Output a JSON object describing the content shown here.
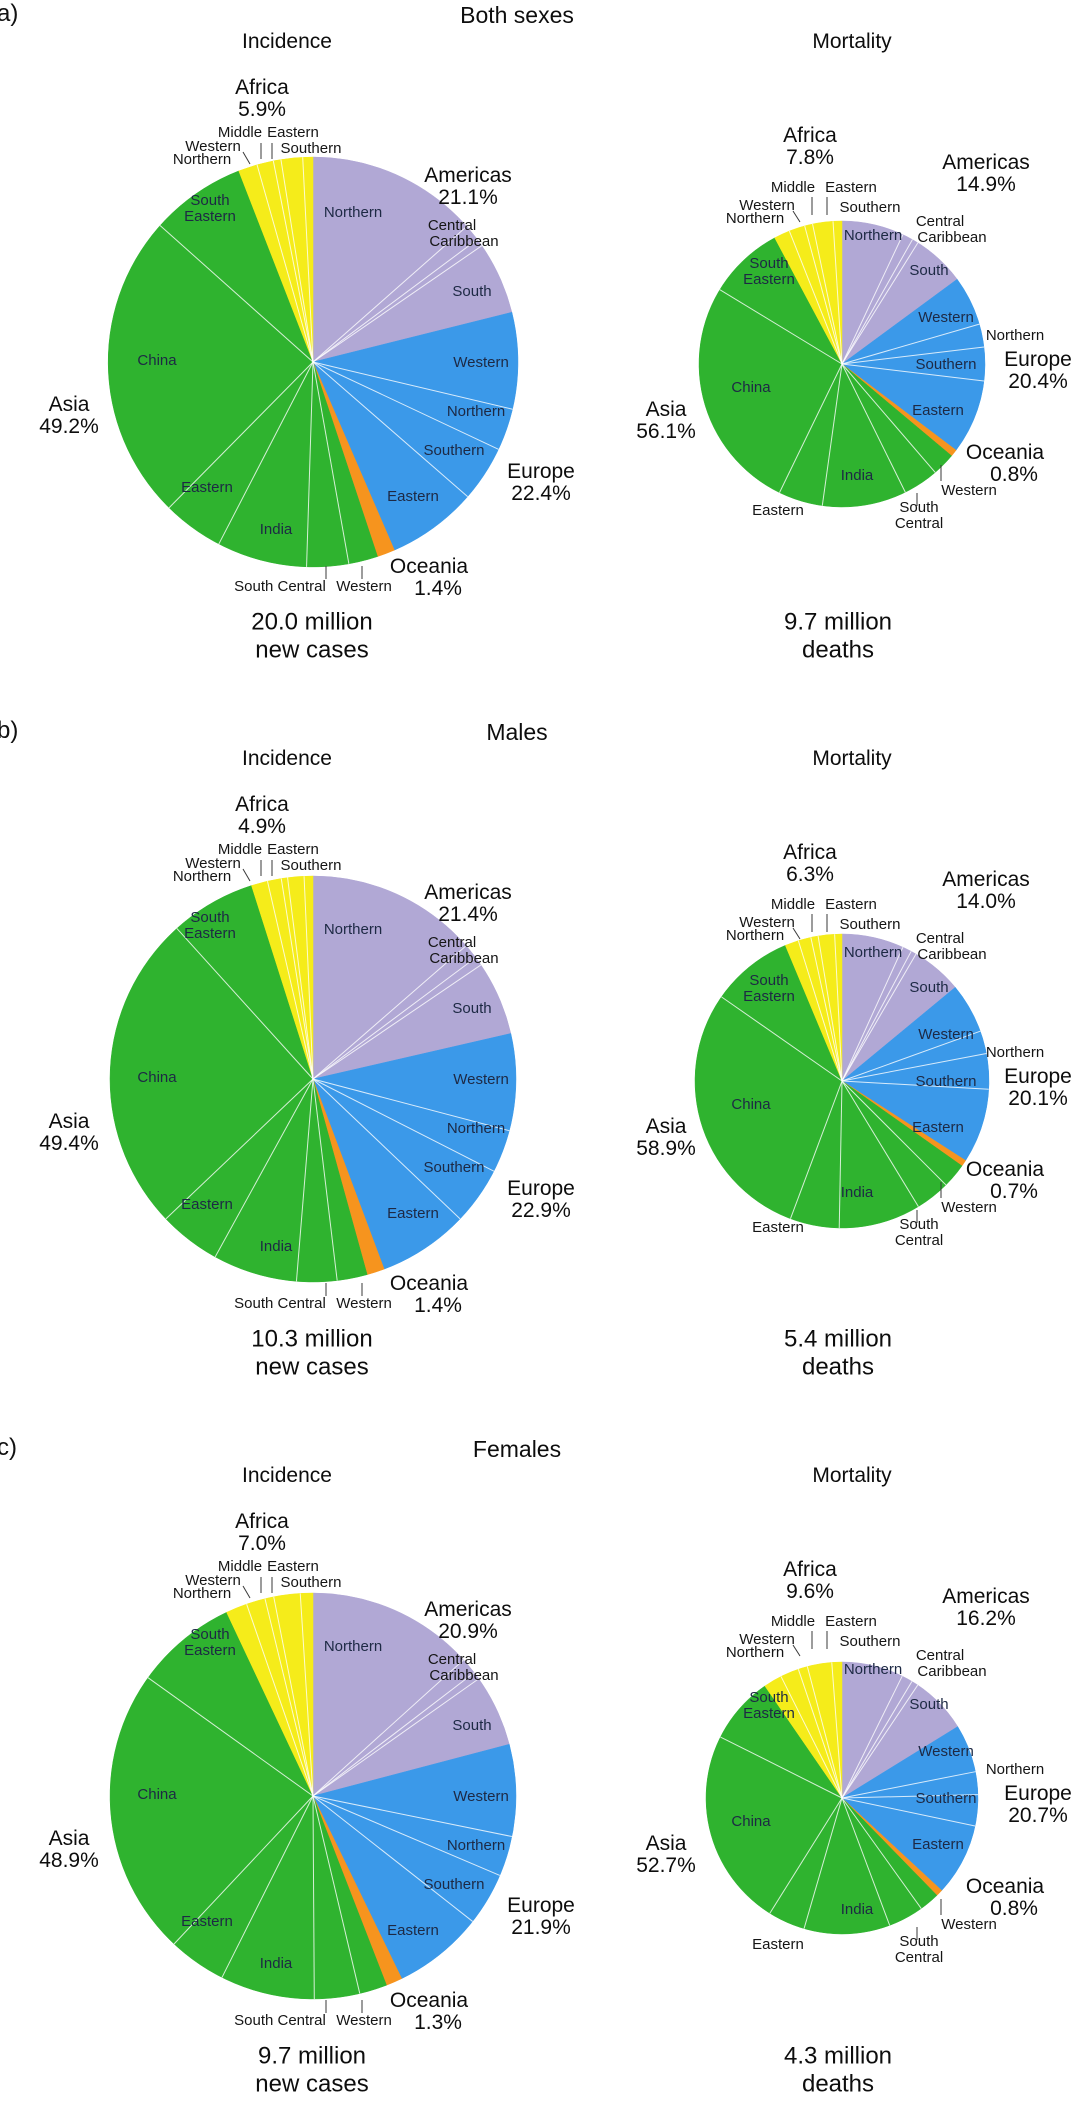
{
  "figure": {
    "colors": {
      "americas": "#b1a8d5",
      "europe": "#3b99e9",
      "oceania": "#f6941e",
      "asia": "#2fb32f",
      "africa": "#f5ec1a",
      "divider": "#ffffff",
      "tick": "#3a3a3a",
      "background": "#ffffff"
    },
    "subregion_labels": {
      "middle": "Middle",
      "eastern": "Eastern",
      "western": "Western",
      "northern": "Northern",
      "southern": "Southern",
      "central": "Central",
      "caribbean": "Caribbean",
      "south": "South",
      "south_central": "South Central",
      "south_eastern": "South Eastern",
      "china": "China",
      "india": "India"
    },
    "panels": [
      {
        "letter": "a)",
        "title": "Both sexes",
        "incidence": {
          "subtitle": "Incidence",
          "caption1": "20.0 million",
          "caption2": "new cases",
          "labels": {
            "africa_name": "Africa",
            "africa_pct": "5.9%",
            "americas_name": "Americas",
            "americas_pct": "21.1%",
            "europe_name": "Europe",
            "europe_pct": "22.4%",
            "oceania_name": "Oceania",
            "oceania_pct": "1.4%",
            "asia_name": "Asia",
            "asia_pct": "49.2%"
          }
        },
        "mortality": {
          "subtitle": "Mortality",
          "caption1": "9.7 million",
          "caption2": "deaths",
          "labels": {
            "africa_name": "Africa",
            "africa_pct": "7.8%",
            "americas_name": "Americas",
            "americas_pct": "14.9%",
            "europe_name": "Europe",
            "europe_pct": "20.4%",
            "oceania_name": "Oceania",
            "oceania_pct": "0.8%",
            "asia_name": "Asia",
            "asia_pct": "56.1%"
          }
        }
      },
      {
        "letter": "b)",
        "title": "Males",
        "incidence": {
          "subtitle": "Incidence",
          "caption1": "10.3 million",
          "caption2": "new cases",
          "labels": {
            "africa_name": "Africa",
            "africa_pct": "4.9%",
            "americas_name": "Americas",
            "americas_pct": "21.4%",
            "europe_name": "Europe",
            "europe_pct": "22.9%",
            "oceania_name": "Oceania",
            "oceania_pct": "1.4%",
            "asia_name": "Asia",
            "asia_pct": "49.4%"
          }
        },
        "mortality": {
          "subtitle": "Mortality",
          "caption1": "5.4 million",
          "caption2": "deaths",
          "labels": {
            "africa_name": "Africa",
            "africa_pct": "6.3%",
            "americas_name": "Americas",
            "americas_pct": "14.0%",
            "europe_name": "Europe",
            "europe_pct": "20.1%",
            "oceania_name": "Oceania",
            "oceania_pct": "0.7%",
            "asia_name": "Asia",
            "asia_pct": "58.9%"
          }
        }
      },
      {
        "letter": "c)",
        "title": "Females",
        "incidence": {
          "subtitle": "Incidence",
          "caption1": "9.7 million",
          "caption2": "new cases",
          "labels": {
            "africa_name": "Africa",
            "africa_pct": "7.0%",
            "americas_name": "Americas",
            "americas_pct": "20.9%",
            "europe_name": "Europe",
            "europe_pct": "21.9%",
            "oceania_name": "Oceania",
            "oceania_pct": "1.3%",
            "asia_name": "Asia",
            "asia_pct": "48.9%"
          }
        },
        "mortality": {
          "subtitle": "Mortality",
          "caption1": "4.3 million",
          "caption2": "deaths",
          "labels": {
            "africa_name": "Africa",
            "africa_pct": "9.6%",
            "americas_name": "Americas",
            "americas_pct": "16.2%",
            "europe_name": "Europe",
            "europe_pct": "20.7%",
            "oceania_name": "Oceania",
            "oceania_pct": "0.8%",
            "asia_name": "Asia",
            "asia_pct": "52.7%"
          }
        }
      }
    ]
  },
  "chart_data": [
    {
      "type": "pie",
      "group": "Both sexes",
      "measure": "Incidence",
      "total_label": "20.0 million new cases",
      "total_millions": 20.0,
      "units": "percent of world total",
      "start": "12 o'clock, clockwise",
      "note": "continent percentages as printed; subregion splits estimated from slice angles",
      "slices": [
        {
          "continent": "Americas",
          "pct": 21.1,
          "subregions": [
            {
              "name": "Northern",
              "pct": 13.5
            },
            {
              "name": "Central",
              "pct": 1.3
            },
            {
              "name": "Caribbean",
              "pct": 0.6
            },
            {
              "name": "South",
              "pct": 5.7
            }
          ]
        },
        {
          "continent": "Europe",
          "pct": 22.4,
          "subregions": [
            {
              "name": "Western",
              "pct": 7.6
            },
            {
              "name": "Northern",
              "pct": 3.3
            },
            {
              "name": "Southern",
              "pct": 4.4
            },
            {
              "name": "Eastern",
              "pct": 7.1
            }
          ]
        },
        {
          "continent": "Oceania",
          "pct": 1.4,
          "subregions": [
            {
              "name": "Oceania",
              "pct": 1.4
            }
          ]
        },
        {
          "continent": "Asia",
          "pct": 49.2,
          "subregions": [
            {
              "name": "Western",
              "pct": 2.3
            },
            {
              "name": "South Central",
              "pct": 3.3
            },
            {
              "name": "India",
              "pct": 7.1
            },
            {
              "name": "Eastern",
              "pct": 4.8
            },
            {
              "name": "China",
              "pct": 24.2
            },
            {
              "name": "South Eastern",
              "pct": 7.5
            }
          ]
        },
        {
          "continent": "Africa",
          "pct": 5.9,
          "subregions": [
            {
              "name": "Northern",
              "pct": 1.5
            },
            {
              "name": "Western",
              "pct": 1.3
            },
            {
              "name": "Middle",
              "pct": 0.6
            },
            {
              "name": "Eastern",
              "pct": 1.7
            },
            {
              "name": "Southern",
              "pct": 0.8
            }
          ]
        }
      ]
    },
    {
      "type": "pie",
      "group": "Both sexes",
      "measure": "Mortality",
      "total_label": "9.7 million deaths",
      "total_millions": 9.7,
      "units": "percent of world total",
      "start": "12 o'clock, clockwise",
      "slices": [
        {
          "continent": "Americas",
          "pct": 14.9,
          "subregions": [
            {
              "name": "Northern",
              "pct": 7.0
            },
            {
              "name": "Central",
              "pct": 1.2
            },
            {
              "name": "Caribbean",
              "pct": 0.7
            },
            {
              "name": "South",
              "pct": 6.0
            }
          ]
        },
        {
          "continent": "Europe",
          "pct": 20.4,
          "subregions": [
            {
              "name": "Western",
              "pct": 5.6
            },
            {
              "name": "Northern",
              "pct": 2.6
            },
            {
              "name": "Southern",
              "pct": 3.8
            },
            {
              "name": "Eastern",
              "pct": 8.4
            }
          ]
        },
        {
          "continent": "Oceania",
          "pct": 0.8,
          "subregions": [
            {
              "name": "Oceania",
              "pct": 0.8
            }
          ]
        },
        {
          "continent": "Asia",
          "pct": 56.1,
          "subregions": [
            {
              "name": "Western",
              "pct": 2.6
            },
            {
              "name": "South Central",
              "pct": 4.0
            },
            {
              "name": "India",
              "pct": 9.5
            },
            {
              "name": "Eastern",
              "pct": 5.0
            },
            {
              "name": "China",
              "pct": 26.5
            },
            {
              "name": "South Eastern",
              "pct": 8.5
            }
          ]
        },
        {
          "continent": "Africa",
          "pct": 7.8,
          "subregions": [
            {
              "name": "Northern",
              "pct": 1.8
            },
            {
              "name": "Western",
              "pct": 1.8
            },
            {
              "name": "Middle",
              "pct": 0.9
            },
            {
              "name": "Eastern",
              "pct": 2.3
            },
            {
              "name": "Southern",
              "pct": 1.0
            }
          ]
        }
      ]
    },
    {
      "type": "pie",
      "group": "Males",
      "measure": "Incidence",
      "total_label": "10.3 million new cases",
      "total_millions": 10.3,
      "units": "percent of world total",
      "start": "12 o'clock, clockwise",
      "slices": [
        {
          "continent": "Americas",
          "pct": 21.4,
          "subregions": [
            {
              "name": "Northern",
              "pct": 13.6
            },
            {
              "name": "Central",
              "pct": 1.2
            },
            {
              "name": "Caribbean",
              "pct": 0.7
            },
            {
              "name": "South",
              "pct": 5.9
            }
          ]
        },
        {
          "continent": "Europe",
          "pct": 22.9,
          "subregions": [
            {
              "name": "Western",
              "pct": 7.7
            },
            {
              "name": "Northern",
              "pct": 3.4
            },
            {
              "name": "Southern",
              "pct": 4.6
            },
            {
              "name": "Eastern",
              "pct": 7.2
            }
          ]
        },
        {
          "continent": "Oceania",
          "pct": 1.4,
          "subregions": [
            {
              "name": "Oceania",
              "pct": 1.4
            }
          ]
        },
        {
          "continent": "Asia",
          "pct": 49.4,
          "subregions": [
            {
              "name": "Western",
              "pct": 2.4
            },
            {
              "name": "South Central",
              "pct": 3.2
            },
            {
              "name": "India",
              "pct": 6.7
            },
            {
              "name": "Eastern",
              "pct": 4.9
            },
            {
              "name": "China",
              "pct": 25.4
            },
            {
              "name": "South Eastern",
              "pct": 6.8
            }
          ]
        },
        {
          "continent": "Africa",
          "pct": 4.9,
          "subregions": [
            {
              "name": "Northern",
              "pct": 1.3
            },
            {
              "name": "Western",
              "pct": 1.1
            },
            {
              "name": "Middle",
              "pct": 0.5
            },
            {
              "name": "Eastern",
              "pct": 1.3
            },
            {
              "name": "Southern",
              "pct": 0.7
            }
          ]
        }
      ]
    },
    {
      "type": "pie",
      "group": "Males",
      "measure": "Mortality",
      "total_label": "5.4 million deaths",
      "total_millions": 5.4,
      "units": "percent of world total",
      "start": "12 o'clock, clockwise",
      "slices": [
        {
          "continent": "Americas",
          "pct": 14.0,
          "subregions": [
            {
              "name": "Northern",
              "pct": 6.8
            },
            {
              "name": "Central",
              "pct": 1.0
            },
            {
              "name": "Caribbean",
              "pct": 0.6
            },
            {
              "name": "South",
              "pct": 5.6
            }
          ]
        },
        {
          "continent": "Europe",
          "pct": 20.1,
          "subregions": [
            {
              "name": "Western",
              "pct": 5.5
            },
            {
              "name": "Northern",
              "pct": 2.5
            },
            {
              "name": "Southern",
              "pct": 3.9
            },
            {
              "name": "Eastern",
              "pct": 8.2
            }
          ]
        },
        {
          "continent": "Oceania",
          "pct": 0.7,
          "subregions": [
            {
              "name": "Oceania",
              "pct": 0.7
            }
          ]
        },
        {
          "continent": "Asia",
          "pct": 58.9,
          "subregions": [
            {
              "name": "Western",
              "pct": 2.7
            },
            {
              "name": "South Central",
              "pct": 3.8
            },
            {
              "name": "India",
              "pct": 9.0
            },
            {
              "name": "Eastern",
              "pct": 5.4
            },
            {
              "name": "China",
              "pct": 29.0
            },
            {
              "name": "South Eastern",
              "pct": 9.0
            }
          ]
        },
        {
          "continent": "Africa",
          "pct": 6.3,
          "subregions": [
            {
              "name": "Northern",
              "pct": 1.5
            },
            {
              "name": "Western",
              "pct": 1.4
            },
            {
              "name": "Middle",
              "pct": 0.8
            },
            {
              "name": "Eastern",
              "pct": 1.8
            },
            {
              "name": "Southern",
              "pct": 0.8
            }
          ]
        }
      ]
    },
    {
      "type": "pie",
      "group": "Females",
      "measure": "Incidence",
      "total_label": "9.7 million new cases",
      "total_millions": 9.7,
      "units": "percent of world total",
      "start": "12 o'clock, clockwise",
      "slices": [
        {
          "continent": "Americas",
          "pct": 20.9,
          "subregions": [
            {
              "name": "Northern",
              "pct": 13.3
            },
            {
              "name": "Central",
              "pct": 1.3
            },
            {
              "name": "Caribbean",
              "pct": 0.6
            },
            {
              "name": "South",
              "pct": 5.7
            }
          ]
        },
        {
          "continent": "Europe",
          "pct": 21.9,
          "subregions": [
            {
              "name": "Western",
              "pct": 7.3
            },
            {
              "name": "Northern",
              "pct": 3.2
            },
            {
              "name": "Southern",
              "pct": 4.2
            },
            {
              "name": "Eastern",
              "pct": 7.2
            }
          ]
        },
        {
          "continent": "Oceania",
          "pct": 1.3,
          "subregions": [
            {
              "name": "Oceania",
              "pct": 1.3
            }
          ]
        },
        {
          "continent": "Asia",
          "pct": 48.9,
          "subregions": [
            {
              "name": "Western",
              "pct": 2.2
            },
            {
              "name": "South Central",
              "pct": 3.6
            },
            {
              "name": "India",
              "pct": 7.5
            },
            {
              "name": "Eastern",
              "pct": 4.6
            },
            {
              "name": "China",
              "pct": 22.9
            },
            {
              "name": "South Eastern",
              "pct": 8.1
            }
          ]
        },
        {
          "continent": "Africa",
          "pct": 7.0,
          "subregions": [
            {
              "name": "Northern",
              "pct": 1.7
            },
            {
              "name": "Western",
              "pct": 1.5
            },
            {
              "name": "Middle",
              "pct": 0.7
            },
            {
              "name": "Eastern",
              "pct": 2.1
            },
            {
              "name": "Southern",
              "pct": 1.0
            }
          ]
        }
      ]
    },
    {
      "type": "pie",
      "group": "Females",
      "measure": "Mortality",
      "total_label": "4.3 million deaths",
      "total_millions": 4.3,
      "units": "percent of world total",
      "start": "12 o'clock, clockwise",
      "slices": [
        {
          "continent": "Americas",
          "pct": 16.2,
          "subregions": [
            {
              "name": "Northern",
              "pct": 7.3
            },
            {
              "name": "Central",
              "pct": 1.3
            },
            {
              "name": "Caribbean",
              "pct": 0.8
            },
            {
              "name": "South",
              "pct": 6.8
            }
          ]
        },
        {
          "continent": "Europe",
          "pct": 20.7,
          "subregions": [
            {
              "name": "Western",
              "pct": 5.7
            },
            {
              "name": "Northern",
              "pct": 2.7
            },
            {
              "name": "Southern",
              "pct": 3.7
            },
            {
              "name": "Eastern",
              "pct": 8.6
            }
          ]
        },
        {
          "continent": "Oceania",
          "pct": 0.8,
          "subregions": [
            {
              "name": "Oceania",
              "pct": 0.8
            }
          ]
        },
        {
          "continent": "Asia",
          "pct": 52.7,
          "subregions": [
            {
              "name": "Western",
              "pct": 2.4
            },
            {
              "name": "South Central",
              "pct": 4.2
            },
            {
              "name": "India",
              "pct": 10.2
            },
            {
              "name": "Eastern",
              "pct": 4.4
            },
            {
              "name": "China",
              "pct": 23.5
            },
            {
              "name": "South Eastern",
              "pct": 8.0
            }
          ]
        },
        {
          "continent": "Africa",
          "pct": 9.6,
          "subregions": [
            {
              "name": "Northern",
              "pct": 2.2
            },
            {
              "name": "Western",
              "pct": 2.2
            },
            {
              "name": "Middle",
              "pct": 1.1
            },
            {
              "name": "Eastern",
              "pct": 2.9
            },
            {
              "name": "Southern",
              "pct": 1.2
            }
          ]
        }
      ]
    }
  ]
}
